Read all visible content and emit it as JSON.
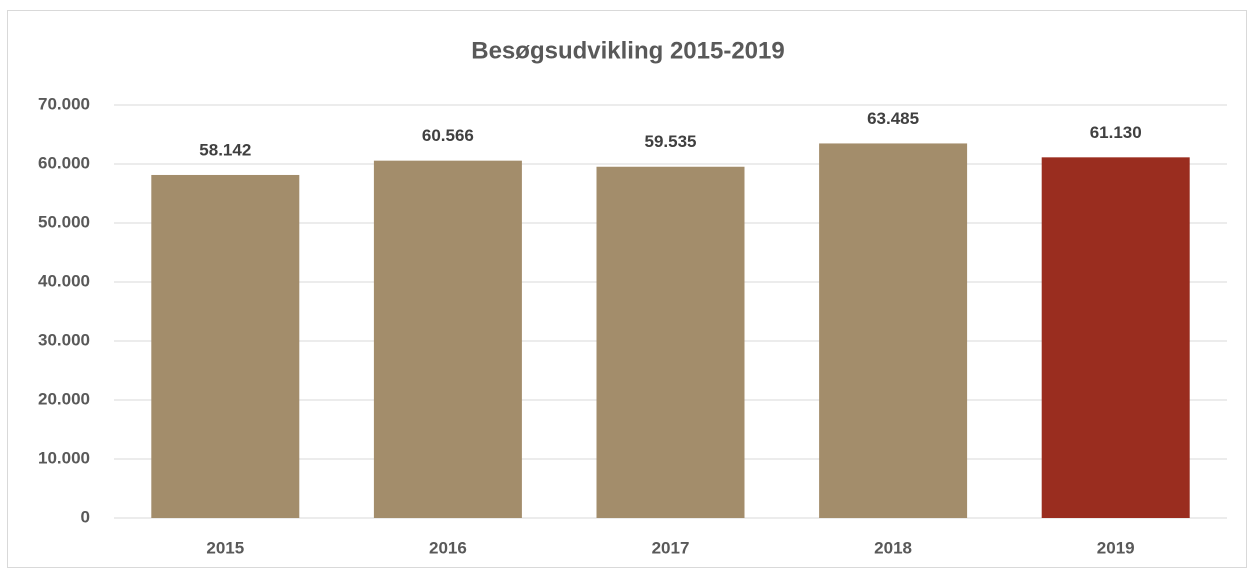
{
  "chart_data": {
    "type": "bar",
    "title": "Besøgsudvikling 2015-2019",
    "categories": [
      "2015",
      "2016",
      "2017",
      "2018",
      "2019"
    ],
    "values": [
      58142,
      60566,
      59535,
      63485,
      61130
    ],
    "value_labels": [
      "58.142",
      "60.566",
      "59.535",
      "63.485",
      "61.130"
    ],
    "colors": [
      "#a38d6b",
      "#a38d6b",
      "#a38d6b",
      "#a38d6b",
      "#9a2d1f"
    ],
    "ylim": [
      0,
      70000
    ],
    "yticks": [
      0,
      {
        "value": 10000,
        "label": "10.000"
      },
      {
        "value": 20000,
        "label": "20.000"
      },
      {
        "value": 30000,
        "label": "30.000"
      },
      {
        "value": 40000,
        "label": "40.000"
      },
      {
        "value": 50000,
        "label": "50.000"
      },
      {
        "value": 60000,
        "label": "60.000"
      },
      {
        "value": 70000,
        "label": "70.000"
      }
    ],
    "grid": true
  }
}
